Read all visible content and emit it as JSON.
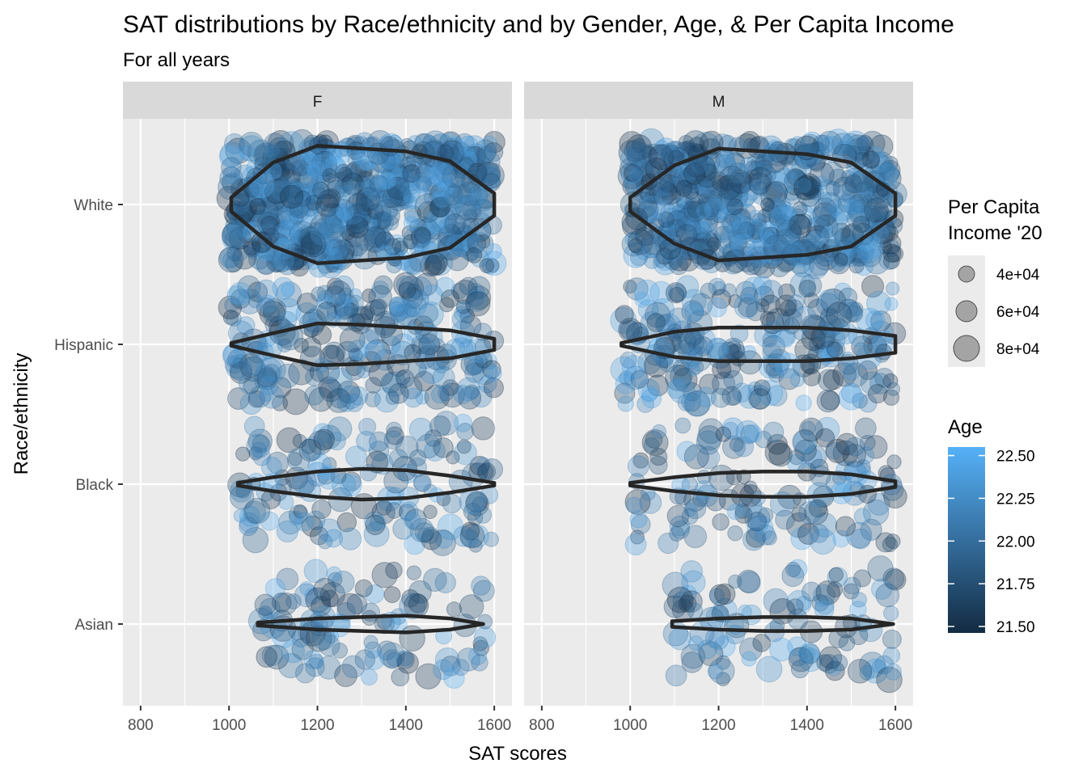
{
  "chart_data": {
    "type": "scatter",
    "title": "SAT distributions by Race/ethnicity and by Gender, Age, & Per Capita Income",
    "subtitle": "For all years",
    "xlabel": "SAT scores",
    "ylabel": "Race/ethnicity",
    "xlim": [
      760,
      1640
    ],
    "x_ticks": [
      "800",
      "1000",
      "1200",
      "1400",
      "1600"
    ],
    "categories": [
      "White",
      "Hispanic",
      "Black",
      "Asian"
    ],
    "facets": [
      "F",
      "M"
    ],
    "grid": true,
    "overlay": "violin",
    "violins": [
      {
        "facet": "F",
        "category": "White",
        "x": [
          1005,
          1100,
          1200,
          1300,
          1400,
          1500,
          1600
        ],
        "half_width": [
          0.05,
          0.3,
          0.42,
          0.4,
          0.38,
          0.31,
          0.08
        ]
      },
      {
        "facet": "F",
        "category": "Hispanic",
        "x": [
          1005,
          1100,
          1200,
          1300,
          1400,
          1500,
          1600
        ],
        "half_width": [
          0.01,
          0.08,
          0.15,
          0.14,
          0.12,
          0.1,
          0.04
        ]
      },
      {
        "facet": "F",
        "category": "Black",
        "x": [
          1020,
          1100,
          1200,
          1300,
          1400,
          1500,
          1600
        ],
        "half_width": [
          0.01,
          0.05,
          0.09,
          0.11,
          0.1,
          0.06,
          0.01
        ]
      },
      {
        "facet": "F",
        "category": "Asian",
        "x": [
          1065,
          1200,
          1300,
          1400,
          1500,
          1575
        ],
        "half_width": [
          0.01,
          0.04,
          0.05,
          0.06,
          0.04,
          0.0
        ]
      },
      {
        "facet": "M",
        "category": "White",
        "x": [
          1000,
          1100,
          1200,
          1300,
          1400,
          1500,
          1600
        ],
        "half_width": [
          0.05,
          0.28,
          0.4,
          0.38,
          0.36,
          0.3,
          0.08
        ]
      },
      {
        "facet": "M",
        "category": "Hispanic",
        "x": [
          980,
          1100,
          1200,
          1300,
          1400,
          1500,
          1600
        ],
        "half_width": [
          0.01,
          0.09,
          0.12,
          0.12,
          0.12,
          0.1,
          0.06
        ]
      },
      {
        "facet": "M",
        "category": "Black",
        "x": [
          1000,
          1100,
          1200,
          1300,
          1400,
          1500,
          1600
        ],
        "half_width": [
          0.01,
          0.05,
          0.08,
          0.09,
          0.09,
          0.07,
          0.02
        ]
      },
      {
        "facet": "M",
        "category": "Asian",
        "x": [
          1095,
          1200,
          1300,
          1400,
          1500,
          1595
        ],
        "half_width": [
          0.02,
          0.04,
          0.05,
          0.05,
          0.04,
          0.0
        ]
      }
    ],
    "point_groups": [
      {
        "facet": "F",
        "category": "White",
        "n": 650,
        "x_range": [
          1000,
          1600
        ],
        "y_spread": 0.45
      },
      {
        "facet": "F",
        "category": "Hispanic",
        "n": 260,
        "x_range": [
          1000,
          1600
        ],
        "y_spread": 0.43
      },
      {
        "facet": "F",
        "category": "Black",
        "n": 160,
        "x_range": [
          1020,
          1600
        ],
        "y_spread": 0.44
      },
      {
        "facet": "F",
        "category": "Asian",
        "n": 110,
        "x_range": [
          1060,
          1580
        ],
        "y_spread": 0.4
      },
      {
        "facet": "M",
        "category": "White",
        "n": 600,
        "x_range": [
          1000,
          1600
        ],
        "y_spread": 0.45
      },
      {
        "facet": "M",
        "category": "Hispanic",
        "n": 240,
        "x_range": [
          980,
          1600
        ],
        "y_spread": 0.43
      },
      {
        "facet": "M",
        "category": "Black",
        "n": 150,
        "x_range": [
          1000,
          1600
        ],
        "y_spread": 0.44
      },
      {
        "facet": "M",
        "category": "Asian",
        "n": 110,
        "x_range": [
          1090,
          1600
        ],
        "y_spread": 0.4
      }
    ],
    "size_legend": {
      "title_line1": "Per Capita",
      "title_line2": "Income '20",
      "labels": [
        "4e+04",
        "6e+04",
        "8e+04"
      ],
      "values": [
        40000,
        60000,
        80000
      ]
    },
    "color_legend": {
      "title": "Age",
      "labels": [
        "22.50",
        "22.25",
        "22.00",
        "21.75",
        "21.50"
      ],
      "values": [
        22.5,
        22.25,
        22.0,
        21.75,
        21.5
      ],
      "low_color": "#132B43",
      "high_color": "#56B1F7"
    }
  }
}
